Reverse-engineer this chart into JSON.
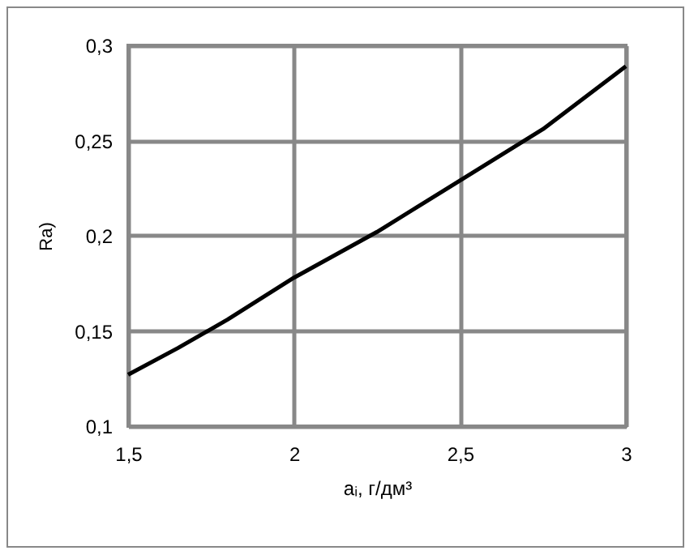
{
  "chart_data": {
    "type": "line",
    "xlabel": "aᵢ, г/дм³",
    "ylabel": "Ra)",
    "x": [
      1.5,
      1.65,
      1.8,
      2.0,
      2.25,
      2.5,
      2.75,
      3.0
    ],
    "series": [
      {
        "color": "#000000",
        "values": [
          0.127,
          0.141,
          0.156,
          0.178,
          0.202,
          0.229,
          0.256,
          0.289
        ]
      }
    ],
    "xlim": [
      1.5,
      3
    ],
    "xticks": [
      {
        "value": 1.5,
        "label": "1,5"
      },
      {
        "value": 2,
        "label": "2"
      },
      {
        "value": 2.5,
        "label": "2,5"
      },
      {
        "value": 3,
        "label": "3"
      }
    ],
    "ylim": [
      0.1,
      0.3
    ],
    "yticks": [
      {
        "value": 0.1,
        "label": "0,1"
      },
      {
        "value": 0.15,
        "label": "0,15"
      },
      {
        "value": 0.2,
        "label": "0,2"
      },
      {
        "value": 0.25,
        "label": "0,25"
      },
      {
        "value": 0.3,
        "label": "0,3"
      }
    ],
    "grid": true,
    "marker": "none",
    "line_style": "solid"
  }
}
